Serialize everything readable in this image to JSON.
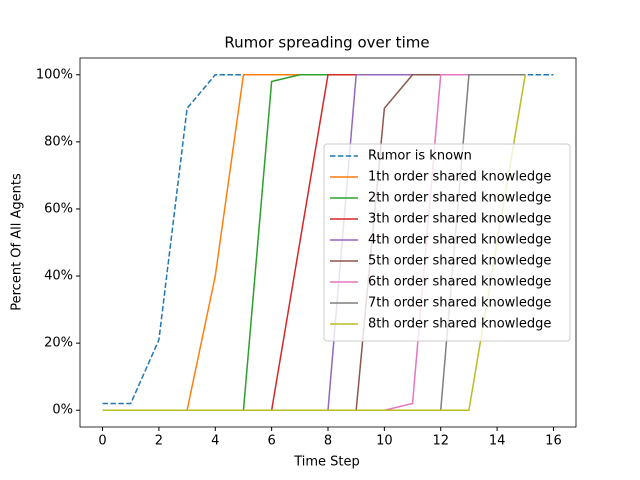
{
  "chart_data": {
    "type": "line",
    "title": "Rumor spreading over time",
    "x_label": "Time Step",
    "y_label": "Percent Of All Agents",
    "x": [
      0,
      1,
      2,
      3,
      4,
      5,
      6,
      7,
      8,
      9,
      10,
      11,
      12,
      13,
      14,
      15,
      16
    ],
    "xlim": [
      -0.8,
      16.8
    ],
    "xticks": [
      0,
      2,
      4,
      6,
      8,
      10,
      12,
      14,
      16
    ],
    "ylim": [
      -5,
      105
    ],
    "yticks": [
      {
        "value": 0,
        "label": "0%"
      },
      {
        "value": 20,
        "label": "20%"
      },
      {
        "value": 40,
        "label": "40%"
      },
      {
        "value": 60,
        "label": "60%"
      },
      {
        "value": 80,
        "label": "80%"
      },
      {
        "value": 100,
        "label": "100%"
      }
    ],
    "legend": "center right",
    "series": [
      {
        "name": "Rumor is known",
        "color": "#1f77b4",
        "dashed": true,
        "values": [
          2,
          2,
          21,
          90,
          100,
          100,
          100,
          100,
          100,
          100,
          100,
          100,
          100,
          100,
          100,
          100,
          100
        ]
      },
      {
        "name": "1th order shared knowledge",
        "color": "#ff7f0e",
        "values": [
          0,
          0,
          0,
          0,
          40,
          100,
          100,
          100,
          100,
          100,
          100,
          100,
          100,
          100,
          100,
          100,
          null
        ]
      },
      {
        "name": "2th order shared knowledge",
        "color": "#2ca02c",
        "values": [
          0,
          0,
          0,
          0,
          0,
          0,
          98,
          100,
          100,
          100,
          100,
          100,
          100,
          100,
          100,
          100,
          null
        ]
      },
      {
        "name": "3th order shared knowledge",
        "color": "#d62728",
        "values": [
          0,
          0,
          0,
          0,
          0,
          0,
          0,
          50,
          100,
          100,
          100,
          100,
          100,
          100,
          100,
          100,
          null
        ]
      },
      {
        "name": "4th order shared knowledge",
        "color": "#9467bd",
        "values": [
          0,
          0,
          0,
          0,
          0,
          0,
          0,
          0,
          0,
          100,
          100,
          100,
          100,
          100,
          100,
          100,
          null
        ]
      },
      {
        "name": "5th order shared knowledge",
        "color": "#8c564b",
        "values": [
          0,
          0,
          0,
          0,
          0,
          0,
          0,
          0,
          0,
          0,
          90,
          100,
          100,
          100,
          100,
          100,
          null
        ]
      },
      {
        "name": "6th order shared knowledge",
        "color": "#e377c2",
        "values": [
          0,
          0,
          0,
          0,
          0,
          0,
          0,
          0,
          0,
          0,
          0,
          2,
          100,
          100,
          100,
          100,
          null
        ]
      },
      {
        "name": "7th order shared knowledge",
        "color": "#7f7f7f",
        "values": [
          0,
          0,
          0,
          0,
          0,
          0,
          0,
          0,
          0,
          0,
          0,
          0,
          0,
          100,
          100,
          100,
          null
        ]
      },
      {
        "name": "8th order shared knowledge",
        "color": "#bcbd22",
        "values": [
          0,
          0,
          0,
          0,
          0,
          0,
          0,
          0,
          0,
          0,
          0,
          0,
          0,
          0,
          50,
          100,
          null
        ]
      }
    ]
  }
}
